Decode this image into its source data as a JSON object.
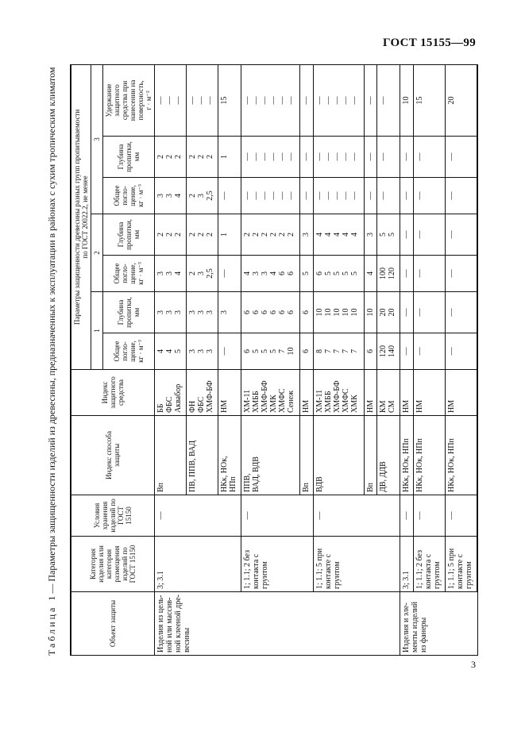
{
  "header": {
    "standard": "ГОСТ 15155—99"
  },
  "page_number": "3",
  "caption": {
    "word": "Таблица",
    "text": "1 — Параметры защищенности изделий из древесины, предназначенных к эксплуатации в районах с сухим тропическим климатом"
  },
  "table": {
    "headers": {
      "object": "Объект защиты",
      "category": "Категория\nизделия или\nкатегория\nразмещения\nизделий по\nГОСТ 15150",
      "storage": "Условия\nхранения\nизделий по\nГОСТ 15150",
      "method": "Индекс способа\nзащиты",
      "agent": "Индекс\nзащитного\nсредства",
      "params": "Параметры защищенности древесины разных групп пропитываемости\nпо ГОСТ 20022.2, не менее",
      "groups": [
        "1",
        "2",
        "3"
      ],
      "absorption": "Общее\nпогло-\nщение,\nкг · м⁻³",
      "depth": "Глубина\nпропитки,\nмм",
      "retention": "Удержание\nзащитного\nсредства при\nнанесении на\nповерхность,\nг · м⁻²"
    },
    "rows": [
      {
        "object": "Изделия из цель-\nной или массив-\nной клееной дре-\nвесины",
        "category": "3; 3.1",
        "storage": "—",
        "method": "Вп",
        "agent": "ББ\nФБС\nАквабор",
        "abs1": "4\n4\n5",
        "dep1": "3\n3\n3",
        "abs2": "3\n3\n4",
        "dep2": "2\n2\n2",
        "abs3": "3\n3\n4",
        "dep3": "2\n2\n2",
        "retention": "—\n—\n—"
      },
      {
        "object": "",
        "category": "",
        "storage": "",
        "method": "ПВ, ППВ, ВАД",
        "agent": "ФН\nФБС\nХМФ-БФ",
        "abs1": "3\n3\n3",
        "dep1": "3\n3\n3",
        "abs2": "2\n3\n2,5",
        "dep2": "2\n2\n2",
        "abs3": "2\n3\n2,5",
        "dep3": "2\n2\n2",
        "retention": "—\n—\n—"
      },
      {
        "object": "",
        "category": "",
        "storage": "",
        "method": "НКк, НОк,\nНПп",
        "agent": "НМ",
        "abs1": "—",
        "dep1": "3",
        "abs2": "—",
        "dep2": "1",
        "abs3": "—",
        "dep3": "1",
        "retention": "15"
      },
      {
        "object": "",
        "category": "1; 1.1; 2 без\nконтакта с\nгрунтом",
        "storage": "—",
        "method": "ППВ,\nВАД, ВДВ",
        "agent": "ХМ-11\nХМББ\nХМФ-БФ\nХМК\nХМФС\nСенеж",
        "abs1": "6\n5\n5\n5\n7\n10",
        "dep1": "6\n6\n6\n6\n6\n6",
        "abs2": "4\n3\n3\n4\n6\n6",
        "dep2": "2\n2\n2\n2\n2\n2",
        "abs3": "—\n—\n—\n—\n—\n—",
        "dep3": "—\n—\n—\n—\n—\n—",
        "retention": "—\n—\n—\n—\n—\n—"
      },
      {
        "object": "",
        "category": "",
        "storage": "",
        "method": "Вп",
        "agent": "НМ",
        "abs1": "6",
        "dep1": "6",
        "abs2": "5",
        "dep2": "3",
        "abs3": "—",
        "dep3": "—",
        "retention": "—"
      },
      {
        "object": "",
        "category": "1; 1.1; 5 при\nконтакте с\nгрунтом",
        "storage": "—",
        "method": "ВДВ",
        "agent": "ХМ-11\nХМББ\nХМФ-БФ\nХМФС\nХМК",
        "abs1": "8\n7\n7\n7\n7",
        "dep1": "10\n10\n10\n10\n10",
        "abs2": "6\n5\n5\n5\n5",
        "dep2": "4\n4\n4\n4\n4",
        "abs3": "—\n—\n—\n—\n—",
        "dep3": "—\n—\n—\n—\n—",
        "retention": "—\n—\n—\n—\n—"
      },
      {
        "object": "",
        "category": "",
        "storage": "",
        "method": "Вп",
        "agent": "НМ",
        "abs1": "6",
        "dep1": "10",
        "abs2": "4",
        "dep2": "3",
        "abs3": "—",
        "dep3": "—",
        "retention": "—"
      },
      {
        "object": "",
        "category": "",
        "storage": "",
        "method": "ДВ, ДДВ",
        "agent": "КМ\nСМ",
        "abs1": "120\n140",
        "dep1": "20\n20",
        "abs2": "100\n120",
        "dep2": "5\n5",
        "abs3": "—",
        "dep3": "—",
        "retention": "—"
      },
      {
        "object": "Изделия и эле-\nменты изделий\nиз фанеры",
        "category": "3; 3.1",
        "storage": "—",
        "method": "НКк, НОк, НПп",
        "agent": "НМ",
        "abs1": "—",
        "dep1": "—",
        "abs2": "—",
        "dep2": "—",
        "abs3": "—",
        "dep3": "—",
        "retention": "10"
      },
      {
        "object": "",
        "category": "1; 1.1; 2 без\nконтакта с\nгрунтом",
        "storage": "—",
        "method": "НКк, НОк, НПп",
        "agent": "НМ",
        "abs1": "—",
        "dep1": "—",
        "abs2": "—",
        "dep2": "—",
        "abs3": "—",
        "dep3": "—",
        "retention": "15"
      },
      {
        "object": "",
        "category": "1; 1.1; 5 при\nконтакте с\nгрунтом",
        "storage": "—",
        "method": "НКк, НОк, НПп",
        "agent": "НМ",
        "abs1": "—",
        "dep1": "—",
        "abs2": "—",
        "dep2": "—",
        "abs3": "—",
        "dep3": "—",
        "retention": "20"
      }
    ]
  }
}
